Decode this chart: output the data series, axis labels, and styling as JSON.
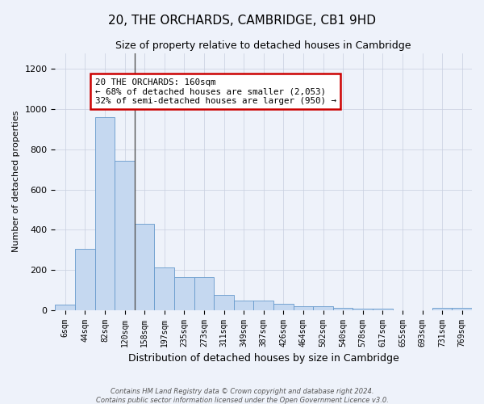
{
  "title": "20, THE ORCHARDS, CAMBRIDGE, CB1 9HD",
  "subtitle": "Size of property relative to detached houses in Cambridge",
  "xlabel": "Distribution of detached houses by size in Cambridge",
  "ylabel": "Number of detached properties",
  "bar_color": "#c5d8f0",
  "bar_edge_color": "#6699cc",
  "categories": [
    "6sqm",
    "44sqm",
    "82sqm",
    "120sqm",
    "158sqm",
    "197sqm",
    "235sqm",
    "273sqm",
    "311sqm",
    "349sqm",
    "387sqm",
    "426sqm",
    "464sqm",
    "502sqm",
    "540sqm",
    "578sqm",
    "617sqm",
    "655sqm",
    "693sqm",
    "731sqm",
    "769sqm"
  ],
  "values": [
    25,
    305,
    960,
    745,
    430,
    210,
    165,
    165,
    75,
    47,
    47,
    32,
    18,
    18,
    12,
    8,
    8,
    0,
    0,
    10,
    10
  ],
  "ylim": [
    0,
    1280
  ],
  "yticks": [
    0,
    200,
    400,
    600,
    800,
    1000,
    1200
  ],
  "vline_index": 3.5,
  "annotation_text": "20 THE ORCHARDS: 160sqm\n← 68% of detached houses are smaller (2,053)\n32% of semi-detached houses are larger (950) →",
  "annotation_box_color": "#ffffff",
  "annotation_box_edgecolor": "#cc0000",
  "footer_line1": "Contains HM Land Registry data © Crown copyright and database right 2024.",
  "footer_line2": "Contains public sector information licensed under the Open Government Licence v3.0.",
  "background_color": "#eef2fa",
  "grid_color": "#c8cfe0"
}
